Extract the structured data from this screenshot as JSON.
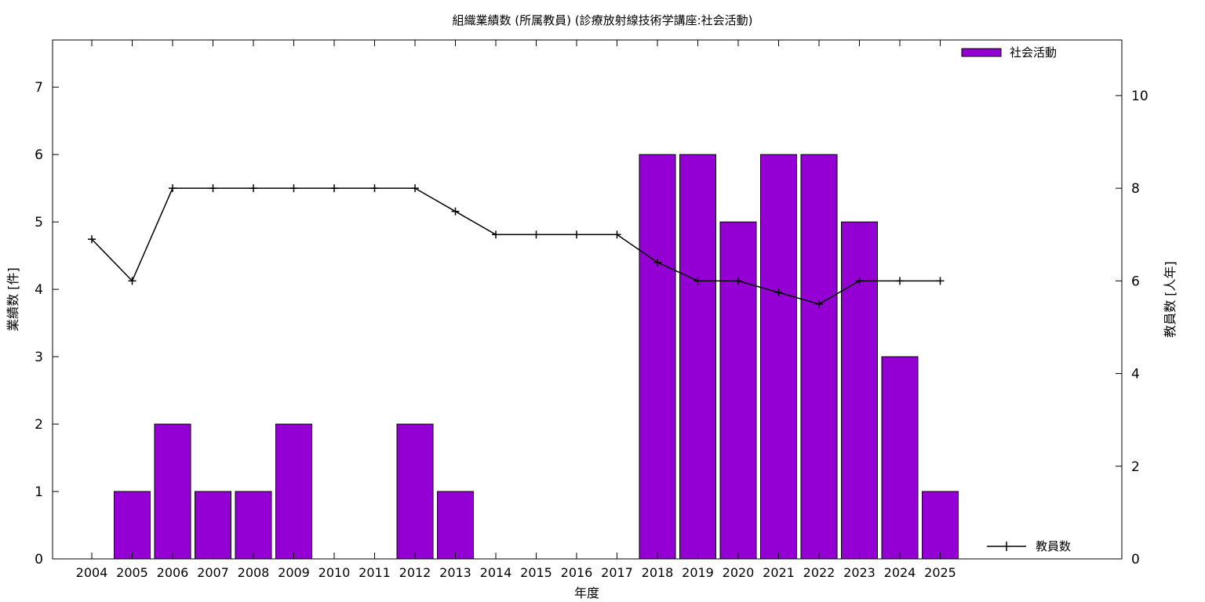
{
  "chart_data": {
    "type": "bar",
    "title": "組織業績数 (所属教員) (診療放射線技術学講座:社会活動)",
    "xlabel": "年度",
    "ylabel": "業績数 [件]",
    "y2label": "教員数 [人年]",
    "categories": [
      "2004",
      "2005",
      "2006",
      "2007",
      "2008",
      "2009",
      "2010",
      "2011",
      "2012",
      "2013",
      "2014",
      "2015",
      "2016",
      "2017",
      "2018",
      "2019",
      "2020",
      "2021",
      "2022",
      "2023",
      "2024",
      "2025"
    ],
    "ylim": [
      0,
      7.7
    ],
    "y2lim": [
      0,
      11.2
    ],
    "yticks": [
      "0",
      "1",
      "2",
      "3",
      "4",
      "5",
      "6",
      "7"
    ],
    "y2ticks": [
      "0",
      "2",
      "4",
      "6",
      "8",
      "10"
    ],
    "series": [
      {
        "name": "社会活動",
        "type": "bar",
        "axis": "left",
        "color": "#9400d3",
        "values": [
          0,
          1,
          2,
          1,
          1,
          2,
          0,
          0,
          2,
          1,
          0,
          0,
          0,
          0,
          6,
          6,
          5,
          6,
          6,
          5,
          3,
          1
        ]
      },
      {
        "name": "教員数",
        "type": "line",
        "axis": "right",
        "color": "#000000",
        "values": [
          6.9,
          6.0,
          8.0,
          8.0,
          8.0,
          8.0,
          8.0,
          8.0,
          8.0,
          7.5,
          7.0,
          7.0,
          7.0,
          7.0,
          6.4,
          6.0,
          6.0,
          5.75,
          5.5,
          6.0,
          6.0,
          6.0
        ]
      }
    ],
    "legend_placement": "top-right (bars), bottom-right (line)",
    "grid": false
  }
}
